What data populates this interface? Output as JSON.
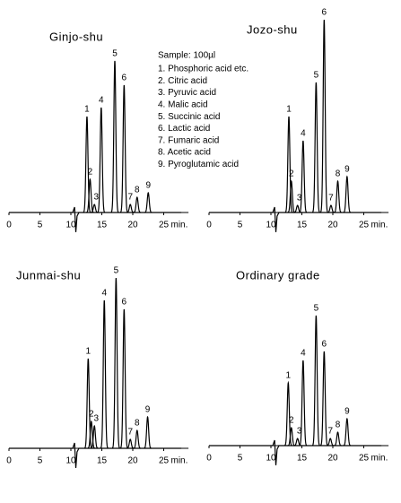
{
  "legend": {
    "title": "Sample: 100µl",
    "items": [
      "1. Phosphoric acid etc.",
      "2. Citric acid",
      "3. Pyruvic acid",
      "4. Malic acid",
      "5. Succinic acid",
      "6. Lactic acid",
      "7. Fumaric acid",
      "8. Acetic acid",
      "9. Pyroglutamic acid"
    ]
  },
  "chart_data": [
    {
      "type": "chromatogram",
      "title": "Ginjo-shu",
      "x": [
        12.6,
        13.1,
        13.8,
        14.9,
        17.1,
        18.6,
        19.6,
        20.7,
        22.5
      ],
      "values": [
        107,
        37,
        9,
        117,
        169,
        142,
        9,
        17,
        22
      ],
      "peak_labels": [
        "1",
        "2",
        "3",
        "4",
        "5",
        "6",
        "7",
        "8",
        "9"
      ],
      "xlim": [
        0,
        29
      ],
      "xticks": [
        0,
        5,
        10,
        15,
        20,
        25
      ],
      "x_unit": "min.",
      "color": "#000000"
    },
    {
      "type": "chromatogram",
      "title": "Jozo-shu",
      "x": [
        12.9,
        13.3,
        14.3,
        15.2,
        17.3,
        18.6,
        19.7,
        20.8,
        22.3
      ],
      "values": [
        107,
        35,
        8,
        80,
        145,
        215,
        8,
        35,
        40
      ],
      "peak_labels": [
        "1",
        "2",
        "3",
        "4",
        "5",
        "6",
        "7",
        "8",
        "9"
      ],
      "xlim": [
        0,
        29
      ],
      "xticks": [
        0,
        5,
        10,
        15,
        20,
        25
      ],
      "x_unit": "min.",
      "color": "#000000"
    },
    {
      "type": "chromatogram",
      "title": "Junmai-shu",
      "x": [
        12.8,
        13.3,
        13.8,
        15.4,
        17.3,
        18.6,
        19.6,
        20.7,
        22.4
      ],
      "values": [
        100,
        30,
        25,
        165,
        190,
        155,
        10,
        20,
        35
      ],
      "peak_labels": [
        "1",
        "2",
        "3",
        "4",
        "5",
        "6",
        "7",
        "8",
        "9"
      ],
      "xlim": [
        0,
        29
      ],
      "xticks": [
        0,
        5,
        10,
        15,
        20,
        25
      ],
      "x_unit": "min.",
      "color": "#000000"
    },
    {
      "type": "chromatogram",
      "title": "Ordinary grade",
      "x": [
        12.8,
        13.3,
        14.3,
        15.2,
        17.3,
        18.6,
        19.6,
        20.8,
        22.3
      ],
      "values": [
        70,
        20,
        8,
        95,
        145,
        105,
        8,
        15,
        30
      ],
      "peak_labels": [
        "1",
        "2",
        "3",
        "4",
        "5",
        "6",
        "7",
        "8",
        "9"
      ],
      "xlim": [
        0,
        29
      ],
      "xticks": [
        0,
        5,
        10,
        15,
        20,
        25
      ],
      "x_unit": "min.",
      "color": "#000000"
    }
  ]
}
